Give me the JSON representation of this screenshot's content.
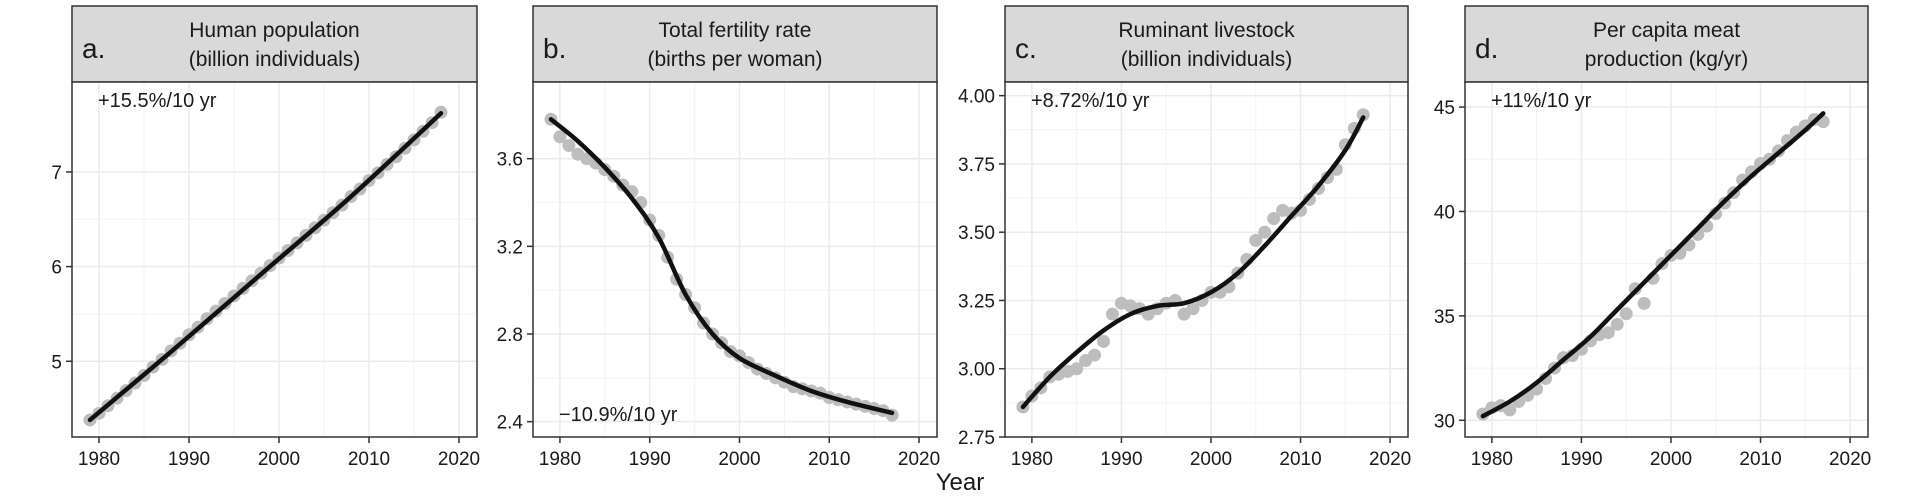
{
  "figure": {
    "xlabel": "Year"
  },
  "colors": {
    "points": "#bdbdbd",
    "line": "#111111",
    "strip": "#d9d9d9",
    "grid": "#ebebeb",
    "frame": "#333333"
  },
  "chart_data": [
    {
      "type": "scatter",
      "panel_letter": "a.",
      "title_line1": "Human population",
      "title_line2": "(billion individuals)",
      "annotation": "+15.5%/10 yr",
      "annotation_pos": "top-left",
      "xlim": [
        1977,
        2022
      ],
      "ylim": [
        4.2,
        7.95
      ],
      "x_ticks": [
        1980,
        1990,
        2000,
        2010,
        2020
      ],
      "y_ticks": [
        5,
        6,
        7
      ],
      "points": [
        [
          1979,
          4.38
        ],
        [
          1980,
          4.45
        ],
        [
          1981,
          4.53
        ],
        [
          1982,
          4.61
        ],
        [
          1983,
          4.69
        ],
        [
          1984,
          4.77
        ],
        [
          1985,
          4.85
        ],
        [
          1986,
          4.94
        ],
        [
          1987,
          5.02
        ],
        [
          1988,
          5.11
        ],
        [
          1989,
          5.19
        ],
        [
          1990,
          5.28
        ],
        [
          1991,
          5.36
        ],
        [
          1992,
          5.45
        ],
        [
          1993,
          5.53
        ],
        [
          1994,
          5.61
        ],
        [
          1995,
          5.69
        ],
        [
          1996,
          5.77
        ],
        [
          1997,
          5.85
        ],
        [
          1998,
          5.93
        ],
        [
          1999,
          6.01
        ],
        [
          2000,
          6.09
        ],
        [
          2001,
          6.17
        ],
        [
          2002,
          6.25
        ],
        [
          2003,
          6.33
        ],
        [
          2004,
          6.41
        ],
        [
          2005,
          6.49
        ],
        [
          2006,
          6.57
        ],
        [
          2007,
          6.65
        ],
        [
          2008,
          6.74
        ],
        [
          2009,
          6.82
        ],
        [
          2010,
          6.91
        ],
        [
          2011,
          6.99
        ],
        [
          2012,
          7.08
        ],
        [
          2013,
          7.16
        ],
        [
          2014,
          7.25
        ],
        [
          2015,
          7.34
        ],
        [
          2016,
          7.43
        ],
        [
          2017,
          7.52
        ],
        [
          2018,
          7.63
        ]
      ],
      "fit": [
        [
          1979,
          4.38
        ],
        [
          1988,
          5.1
        ],
        [
          1998,
          5.92
        ],
        [
          2008,
          6.74
        ],
        [
          2018,
          7.62
        ]
      ]
    },
    {
      "type": "scatter",
      "panel_letter": "b.",
      "title_line1": "Total fertility rate",
      "title_line2": "(births per woman)",
      "annotation": "−10.9%/10 yr",
      "annotation_pos": "bottom-left",
      "xlim": [
        1977,
        2022
      ],
      "ylim": [
        2.33,
        3.95
      ],
      "x_ticks": [
        1980,
        1990,
        2000,
        2010,
        2020
      ],
      "y_ticks": [
        2.4,
        2.8,
        3.2,
        3.6
      ],
      "points": [
        [
          1979,
          3.78
        ],
        [
          1980,
          3.7
        ],
        [
          1981,
          3.66
        ],
        [
          1982,
          3.62
        ],
        [
          1983,
          3.6
        ],
        [
          1984,
          3.58
        ],
        [
          1985,
          3.55
        ],
        [
          1986,
          3.52
        ],
        [
          1987,
          3.48
        ],
        [
          1988,
          3.45
        ],
        [
          1989,
          3.4
        ],
        [
          1990,
          3.32
        ],
        [
          1991,
          3.25
        ],
        [
          1992,
          3.15
        ],
        [
          1993,
          3.05
        ],
        [
          1994,
          2.98
        ],
        [
          1995,
          2.92
        ],
        [
          1996,
          2.85
        ],
        [
          1997,
          2.8
        ],
        [
          1998,
          2.76
        ],
        [
          1999,
          2.72
        ],
        [
          2000,
          2.7
        ],
        [
          2001,
          2.67
        ],
        [
          2002,
          2.64
        ],
        [
          2003,
          2.62
        ],
        [
          2004,
          2.6
        ],
        [
          2005,
          2.58
        ],
        [
          2006,
          2.56
        ],
        [
          2007,
          2.55
        ],
        [
          2008,
          2.54
        ],
        [
          2009,
          2.53
        ],
        [
          2010,
          2.51
        ],
        [
          2011,
          2.5
        ],
        [
          2012,
          2.49
        ],
        [
          2013,
          2.48
        ],
        [
          2014,
          2.47
        ],
        [
          2015,
          2.46
        ],
        [
          2016,
          2.45
        ],
        [
          2017,
          2.43
        ]
      ],
      "fit": [
        [
          1979,
          3.78
        ],
        [
          1982,
          3.68
        ],
        [
          1985,
          3.56
        ],
        [
          1988,
          3.42
        ],
        [
          1991,
          3.24
        ],
        [
          1994,
          2.98
        ],
        [
          1997,
          2.8
        ],
        [
          2000,
          2.69
        ],
        [
          2004,
          2.61
        ],
        [
          2008,
          2.54
        ],
        [
          2012,
          2.49
        ],
        [
          2017,
          2.44
        ]
      ]
    },
    {
      "type": "scatter",
      "panel_letter": "c.",
      "title_line1": "Ruminant livestock",
      "title_line2": "(billion individuals)",
      "annotation": "+8.72%/10 yr",
      "annotation_pos": "top-left",
      "xlim": [
        1977,
        2022
      ],
      "ylim": [
        2.75,
        4.05
      ],
      "x_ticks": [
        1980,
        1990,
        2000,
        2010,
        2020
      ],
      "y_ticks": [
        2.75,
        3.0,
        3.25,
        3.5,
        3.75,
        4.0
      ],
      "points": [
        [
          1979,
          2.86
        ],
        [
          1980,
          2.9
        ],
        [
          1981,
          2.93
        ],
        [
          1982,
          2.97
        ],
        [
          1983,
          2.98
        ],
        [
          1984,
          2.99
        ],
        [
          1985,
          3.0
        ],
        [
          1986,
          3.03
        ],
        [
          1987,
          3.05
        ],
        [
          1988,
          3.1
        ],
        [
          1989,
          3.2
        ],
        [
          1990,
          3.24
        ],
        [
          1991,
          3.23
        ],
        [
          1992,
          3.22
        ],
        [
          1993,
          3.2
        ],
        [
          1994,
          3.22
        ],
        [
          1995,
          3.24
        ],
        [
          1996,
          3.25
        ],
        [
          1997,
          3.2
        ],
        [
          1998,
          3.22
        ],
        [
          1999,
          3.25
        ],
        [
          2000,
          3.28
        ],
        [
          2001,
          3.28
        ],
        [
          2002,
          3.3
        ],
        [
          2003,
          3.35
        ],
        [
          2004,
          3.4
        ],
        [
          2005,
          3.47
        ],
        [
          2006,
          3.5
        ],
        [
          2007,
          3.55
        ],
        [
          2008,
          3.58
        ],
        [
          2009,
          3.57
        ],
        [
          2010,
          3.58
        ],
        [
          2011,
          3.62
        ],
        [
          2012,
          3.66
        ],
        [
          2013,
          3.7
        ],
        [
          2014,
          3.73
        ],
        [
          2015,
          3.82
        ],
        [
          2016,
          3.88
        ],
        [
          2017,
          3.93
        ]
      ],
      "fit": [
        [
          1979,
          2.86
        ],
        [
          1982,
          2.97
        ],
        [
          1985,
          3.06
        ],
        [
          1988,
          3.14
        ],
        [
          1991,
          3.2
        ],
        [
          1994,
          3.23
        ],
        [
          1997,
          3.24
        ],
        [
          2000,
          3.28
        ],
        [
          2003,
          3.35
        ],
        [
          2006,
          3.45
        ],
        [
          2009,
          3.56
        ],
        [
          2012,
          3.67
        ],
        [
          2015,
          3.8
        ],
        [
          2017,
          3.92
        ]
      ]
    },
    {
      "type": "scatter",
      "panel_letter": "d.",
      "title_line1": "Per capita meat",
      "title_line2": "production (kg/yr)",
      "annotation": "+11%/10 yr",
      "annotation_pos": "top-left",
      "xlim": [
        1977,
        2022
      ],
      "ylim": [
        29.2,
        46.2
      ],
      "x_ticks": [
        1980,
        1990,
        2000,
        2010,
        2020
      ],
      "y_ticks": [
        30,
        35,
        40,
        45
      ],
      "points": [
        [
          1979,
          30.3
        ],
        [
          1980,
          30.6
        ],
        [
          1981,
          30.7
        ],
        [
          1982,
          30.5
        ],
        [
          1983,
          30.9
        ],
        [
          1984,
          31.2
        ],
        [
          1985,
          31.5
        ],
        [
          1986,
          32.0
        ],
        [
          1987,
          32.5
        ],
        [
          1988,
          33.0
        ],
        [
          1989,
          33.1
        ],
        [
          1990,
          33.4
        ],
        [
          1991,
          33.8
        ],
        [
          1992,
          34.1
        ],
        [
          1993,
          34.2
        ],
        [
          1994,
          34.6
        ],
        [
          1995,
          35.1
        ],
        [
          1996,
          36.3
        ],
        [
          1997,
          35.6
        ],
        [
          1998,
          36.8
        ],
        [
          1999,
          37.5
        ],
        [
          2000,
          37.9
        ],
        [
          2001,
          38.0
        ],
        [
          2002,
          38.4
        ],
        [
          2003,
          38.9
        ],
        [
          2004,
          39.3
        ],
        [
          2005,
          39.9
        ],
        [
          2006,
          40.4
        ],
        [
          2007,
          40.9
        ],
        [
          2008,
          41.5
        ],
        [
          2009,
          41.9
        ],
        [
          2010,
          42.3
        ],
        [
          2011,
          42.5
        ],
        [
          2012,
          42.9
        ],
        [
          2013,
          43.4
        ],
        [
          2014,
          43.8
        ],
        [
          2015,
          44.1
        ],
        [
          2016,
          44.4
        ],
        [
          2017,
          44.3
        ]
      ],
      "fit": [
        [
          1979,
          30.2
        ],
        [
          1982,
          30.9
        ],
        [
          1985,
          31.8
        ],
        [
          1988,
          32.9
        ],
        [
          1991,
          34.0
        ],
        [
          1994,
          35.3
        ],
        [
          1997,
          36.6
        ],
        [
          2000,
          37.9
        ],
        [
          2003,
          39.2
        ],
        [
          2006,
          40.5
        ],
        [
          2009,
          41.7
        ],
        [
          2012,
          42.8
        ],
        [
          2015,
          43.9
        ],
        [
          2017,
          44.7
        ]
      ]
    }
  ]
}
